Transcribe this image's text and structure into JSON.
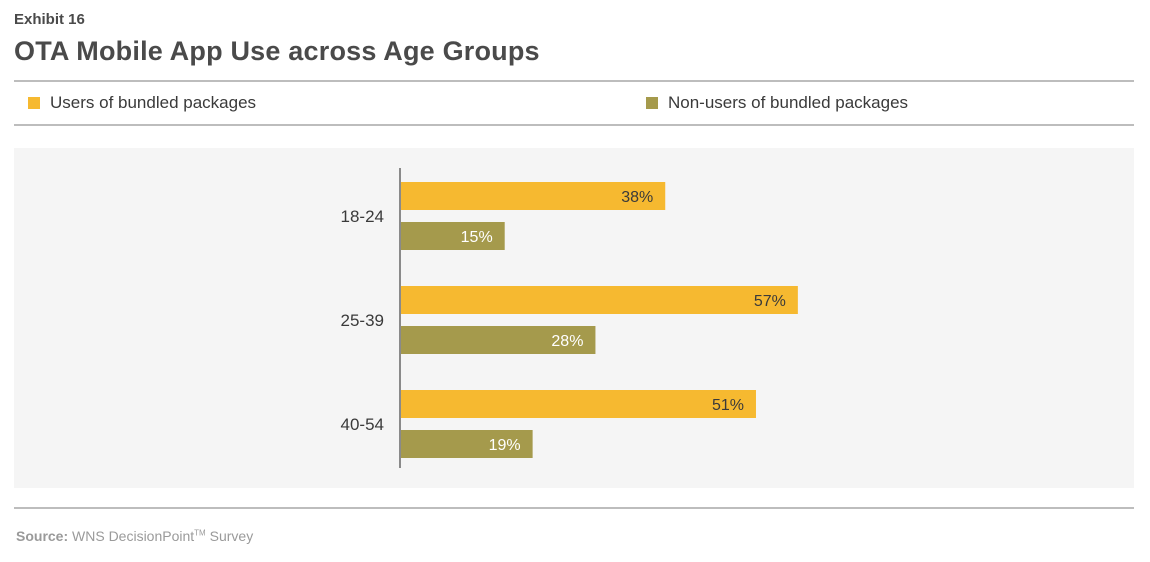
{
  "header": {
    "exhibit": "Exhibit 16",
    "title": "OTA Mobile App Use across Age Groups"
  },
  "source": {
    "label": "Source:",
    "text": "WNS DecisionPoint",
    "tm": "TM",
    "suffix": " Survey"
  },
  "chart_data": {
    "type": "bar",
    "orientation": "horizontal",
    "title": "OTA Mobile App Use across Age Groups",
    "categories": [
      "18-24",
      "25-39",
      "40-54"
    ],
    "series": [
      {
        "name": "Users of bundled packages",
        "values": [
          38,
          57,
          51
        ],
        "labels": [
          "38%",
          "57%",
          "51%"
        ],
        "color": "#f6b930"
      },
      {
        "name": "Non-users of bundled packages",
        "values": [
          15,
          28,
          19
        ],
        "labels": [
          "15%",
          "28%",
          "19%"
        ],
        "color": "#a59a4c"
      }
    ],
    "xlim": [
      0,
      100
    ],
    "unit": "%",
    "legend": "top",
    "grid": false
  }
}
